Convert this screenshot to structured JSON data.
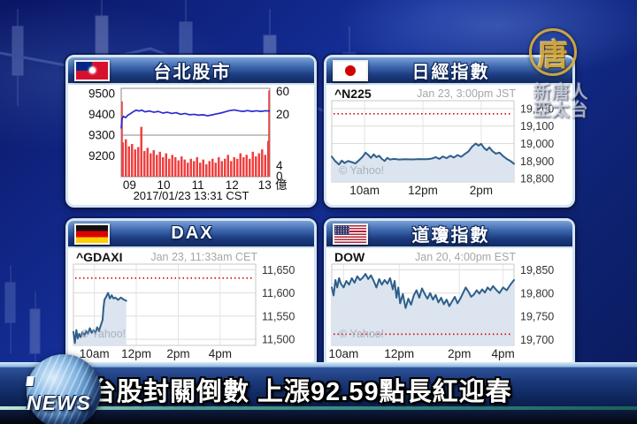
{
  "station": {
    "logo_char": "唐",
    "logo_line1": "新唐人",
    "logo_line2": "亞太台"
  },
  "ticker": {
    "news_label": "NEWS",
    "headline": "台股封關倒數 上漲92.59點長紅迎春"
  },
  "chart_data": [
    {
      "id": "taipei",
      "type": "line",
      "subtype": "intraday-price-with-volume-bars",
      "title": "台北股市",
      "flag": "taiwan",
      "date_caption": "2017/01/23 13:31 CST",
      "ylim": [
        9100,
        9525
      ],
      "price_axis_ticks": [
        {
          "v": 9500,
          "label": "9500"
        },
        {
          "v": 9400,
          "label": "9400"
        },
        {
          "v": 9300,
          "label": "9300"
        },
        {
          "v": 9200,
          "label": "9200"
        }
      ],
      "volume_axis_ticks": [
        "60",
        "20",
        "4",
        "0"
      ],
      "x_ticks": [
        {
          "f": 0.02,
          "label": "09"
        },
        {
          "f": 0.25,
          "label": "10"
        },
        {
          "f": 0.48,
          "label": "11"
        },
        {
          "f": 0.71,
          "label": "12"
        },
        {
          "f": 0.93,
          "label": "13"
        }
      ],
      "x_unit": "億",
      "separator_value": 9300,
      "line_color": "#2b2bd0",
      "bar_color": "#f04040",
      "price_points": [
        [
          0,
          9332
        ],
        [
          0.005,
          9378
        ],
        [
          0.015,
          9390
        ],
        [
          0.03,
          9384
        ],
        [
          0.045,
          9396
        ],
        [
          0.06,
          9402
        ],
        [
          0.08,
          9412
        ],
        [
          0.1,
          9420
        ],
        [
          0.12,
          9416
        ],
        [
          0.14,
          9420
        ],
        [
          0.16,
          9412
        ],
        [
          0.19,
          9416
        ],
        [
          0.22,
          9410
        ],
        [
          0.25,
          9414
        ],
        [
          0.28,
          9406
        ],
        [
          0.31,
          9410
        ],
        [
          0.34,
          9404
        ],
        [
          0.37,
          9408
        ],
        [
          0.4,
          9400
        ],
        [
          0.43,
          9404
        ],
        [
          0.46,
          9398
        ],
        [
          0.49,
          9400
        ],
        [
          0.52,
          9396
        ],
        [
          0.55,
          9398
        ],
        [
          0.58,
          9393
        ],
        [
          0.61,
          9397
        ],
        [
          0.64,
          9402
        ],
        [
          0.67,
          9406
        ],
        [
          0.7,
          9412
        ],
        [
          0.73,
          9418
        ],
        [
          0.76,
          9421
        ],
        [
          0.79,
          9417
        ],
        [
          0.82,
          9414
        ],
        [
          0.85,
          9418
        ],
        [
          0.88,
          9414
        ],
        [
          0.91,
          9417
        ],
        [
          0.94,
          9414
        ],
        [
          0.97,
          9417
        ],
        [
          1,
          9416
        ]
      ],
      "volume_bars": [
        0.88,
        0.96,
        0.78,
        0.84,
        0.7,
        0.76,
        1.28,
        0.66,
        0.74,
        0.6,
        0.68,
        0.56,
        0.64,
        0.5,
        0.6,
        0.46,
        0.56,
        0.5,
        0.42,
        0.52,
        0.44,
        0.36,
        0.46,
        0.4,
        0.5,
        0.36,
        0.44,
        0.32,
        0.4,
        0.46,
        0.36,
        0.5,
        0.4,
        0.46,
        0.56,
        0.4,
        0.5,
        0.46,
        0.6,
        0.5,
        0.56,
        0.46,
        0.64,
        0.52,
        0.6,
        0.7,
        0.56,
        0.92
      ],
      "edge_spikes": [
        {
          "f": 0,
          "top": 9462
        },
        {
          "f": 1,
          "top": 9515
        }
      ]
    },
    {
      "id": "nikkei",
      "type": "area",
      "subtype": "intraday",
      "title": "日經指數",
      "flag": "japan",
      "symbol": "^N225",
      "timestamp": "Jan 23, 3:00pm JST",
      "watermark": "© Yahoo!",
      "ylim": [
        18780,
        19245
      ],
      "yticks": [
        {
          "v": 19200,
          "label": "19,200"
        },
        {
          "v": 19100,
          "label": "19,100"
        },
        {
          "v": 19000,
          "label": "19,000"
        },
        {
          "v": 18900,
          "label": "18,900"
        },
        {
          "v": 18800,
          "label": "18,800"
        }
      ],
      "prev_close": 19170,
      "x_ticks": [
        {
          "f": 0.18,
          "label": "10am"
        },
        {
          "f": 0.5,
          "label": "12pm"
        },
        {
          "f": 0.82,
          "label": "2pm"
        }
      ],
      "line_color": "#2e5f8a",
      "fill_color": "#dbe4ef",
      "prev_close_color": "#e00000",
      "points": [
        [
          0,
          18925
        ],
        [
          0.02,
          18898
        ],
        [
          0.04,
          18880
        ],
        [
          0.055,
          18902
        ],
        [
          0.07,
          18888
        ],
        [
          0.09,
          18900
        ],
        [
          0.11,
          18893
        ],
        [
          0.13,
          18886
        ],
        [
          0.15,
          18905
        ],
        [
          0.17,
          18925
        ],
        [
          0.185,
          18948
        ],
        [
          0.2,
          18935
        ],
        [
          0.215,
          18918
        ],
        [
          0.23,
          18938
        ],
        [
          0.245,
          18922
        ],
        [
          0.26,
          18930
        ],
        [
          0.275,
          18912
        ],
        [
          0.29,
          18900
        ],
        [
          0.305,
          18918
        ],
        [
          0.32,
          18908
        ],
        [
          0.34,
          18912
        ],
        [
          0.37,
          18908
        ],
        [
          0.4,
          18910
        ],
        [
          0.44,
          18909
        ],
        [
          0.48,
          18911
        ],
        [
          0.52,
          18910
        ],
        [
          0.55,
          18914
        ],
        [
          0.57,
          18922
        ],
        [
          0.59,
          18912
        ],
        [
          0.61,
          18926
        ],
        [
          0.63,
          18916
        ],
        [
          0.65,
          18930
        ],
        [
          0.67,
          18920
        ],
        [
          0.69,
          18934
        ],
        [
          0.71,
          18924
        ],
        [
          0.73,
          18940
        ],
        [
          0.75,
          18955
        ],
        [
          0.77,
          18982
        ],
        [
          0.79,
          19000
        ],
        [
          0.805,
          18988
        ],
        [
          0.82,
          18998
        ],
        [
          0.835,
          18975
        ],
        [
          0.85,
          18962
        ],
        [
          0.865,
          18978
        ],
        [
          0.88,
          18958
        ],
        [
          0.9,
          18942
        ],
        [
          0.92,
          18948
        ],
        [
          0.94,
          18928
        ],
        [
          0.96,
          18912
        ],
        [
          0.98,
          18900
        ],
        [
          1,
          18884
        ]
      ]
    },
    {
      "id": "dax",
      "type": "area",
      "subtype": "intraday-partial",
      "title": "DAX",
      "flag": "germany",
      "symbol": "^GDAXI",
      "timestamp": "Jan 23, 11:33am CET",
      "watermark": "© Yahoo!",
      "ylim": [
        11487,
        11662
      ],
      "yticks": [
        {
          "v": 11650,
          "label": "11,650"
        },
        {
          "v": 11600,
          "label": "11,600"
        },
        {
          "v": 11550,
          "label": "11,550"
        },
        {
          "v": 11500,
          "label": "11,500"
        }
      ],
      "prev_close": 11632,
      "x_ticks": [
        {
          "f": 0.115,
          "label": "10am"
        },
        {
          "f": 0.345,
          "label": "12pm"
        },
        {
          "f": 0.575,
          "label": "2pm"
        },
        {
          "f": 0.805,
          "label": "4pm"
        }
      ],
      "line_color": "#2e5f8a",
      "fill_color": "#dbe4ef",
      "prev_close_color": "#e00000",
      "points": [
        [
          0,
          11516
        ],
        [
          0.008,
          11492
        ],
        [
          0.016,
          11520
        ],
        [
          0.024,
          11502
        ],
        [
          0.032,
          11512
        ],
        [
          0.04,
          11505
        ],
        [
          0.05,
          11515
        ],
        [
          0.06,
          11508
        ],
        [
          0.07,
          11518
        ],
        [
          0.08,
          11512
        ],
        [
          0.09,
          11524
        ],
        [
          0.1,
          11514
        ],
        [
          0.11,
          11520
        ],
        [
          0.12,
          11512
        ],
        [
          0.13,
          11526
        ],
        [
          0.14,
          11518
        ],
        [
          0.15,
          11530
        ],
        [
          0.16,
          11542
        ],
        [
          0.165,
          11568
        ],
        [
          0.17,
          11585
        ],
        [
          0.18,
          11592
        ],
        [
          0.19,
          11600
        ],
        [
          0.2,
          11588
        ],
        [
          0.21,
          11595
        ],
        [
          0.22,
          11588
        ],
        [
          0.23,
          11590
        ],
        [
          0.245,
          11585
        ],
        [
          0.26,
          11590
        ],
        [
          0.275,
          11586
        ],
        [
          0.29,
          11583
        ]
      ]
    },
    {
      "id": "dow",
      "type": "area",
      "subtype": "intraday",
      "title": "道瓊指數",
      "flag": "usa",
      "symbol": "DOW",
      "timestamp": "Jan 20, 4:00pm EST",
      "watermark": "© Yahoo!",
      "ylim": [
        19688,
        19862
      ],
      "yticks": [
        {
          "v": 19850,
          "label": "19,850"
        },
        {
          "v": 19800,
          "label": "19,800"
        },
        {
          "v": 19750,
          "label": "19,750"
        },
        {
          "v": 19700,
          "label": "19,700"
        }
      ],
      "prev_close": 19712,
      "x_ticks": [
        {
          "f": 0.065,
          "label": "10am"
        },
        {
          "f": 0.37,
          "label": "12pm"
        },
        {
          "f": 0.7,
          "label": "2pm"
        },
        {
          "f": 0.94,
          "label": "4pm"
        }
      ],
      "line_color": "#2e5f8a",
      "fill_color": "#dbe4ef",
      "prev_close_color": "#e00000",
      "points": [
        [
          0,
          19812
        ],
        [
          0.01,
          19795
        ],
        [
          0.02,
          19828
        ],
        [
          0.03,
          19812
        ],
        [
          0.04,
          19832
        ],
        [
          0.05,
          19820
        ],
        [
          0.065,
          19812
        ],
        [
          0.08,
          19826
        ],
        [
          0.095,
          19818
        ],
        [
          0.11,
          19832
        ],
        [
          0.125,
          19822
        ],
        [
          0.14,
          19836
        ],
        [
          0.155,
          19828
        ],
        [
          0.17,
          19833
        ],
        [
          0.185,
          19841
        ],
        [
          0.2,
          19830
        ],
        [
          0.215,
          19838
        ],
        [
          0.23,
          19826
        ],
        [
          0.245,
          19812
        ],
        [
          0.26,
          19830
        ],
        [
          0.275,
          19818
        ],
        [
          0.29,
          19828
        ],
        [
          0.305,
          19820
        ],
        [
          0.32,
          19832
        ],
        [
          0.335,
          19808
        ],
        [
          0.345,
          19826
        ],
        [
          0.355,
          19790
        ],
        [
          0.365,
          19812
        ],
        [
          0.375,
          19778
        ],
        [
          0.39,
          19798
        ],
        [
          0.405,
          19768
        ],
        [
          0.42,
          19788
        ],
        [
          0.435,
          19775
        ],
        [
          0.45,
          19795
        ],
        [
          0.465,
          19806
        ],
        [
          0.48,
          19790
        ],
        [
          0.495,
          19810
        ],
        [
          0.51,
          19798
        ],
        [
          0.525,
          19788
        ],
        [
          0.54,
          19800
        ],
        [
          0.555,
          19786
        ],
        [
          0.57,
          19796
        ],
        [
          0.585,
          19780
        ],
        [
          0.6,
          19790
        ],
        [
          0.615,
          19776
        ],
        [
          0.63,
          19786
        ],
        [
          0.645,
          19772
        ],
        [
          0.66,
          19782
        ],
        [
          0.675,
          19792
        ],
        [
          0.69,
          19778
        ],
        [
          0.705,
          19788
        ],
        [
          0.72,
          19800
        ],
        [
          0.735,
          19812
        ],
        [
          0.75,
          19803
        ],
        [
          0.765,
          19792
        ],
        [
          0.78,
          19797
        ],
        [
          0.795,
          19806
        ],
        [
          0.81,
          19799
        ],
        [
          0.825,
          19808
        ],
        [
          0.84,
          19801
        ],
        [
          0.855,
          19812
        ],
        [
          0.87,
          19806
        ],
        [
          0.885,
          19815
        ],
        [
          0.9,
          19808
        ],
        [
          0.92,
          19800
        ],
        [
          0.94,
          19812
        ],
        [
          0.96,
          19806
        ],
        [
          0.98,
          19818
        ],
        [
          1,
          19828
        ]
      ]
    }
  ]
}
